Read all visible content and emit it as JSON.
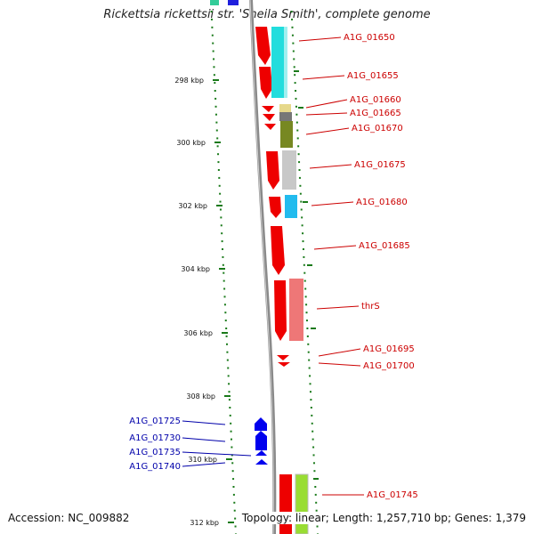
{
  "title": "Rickettsia rickettsii str. 'Sheila Smith', complete genome",
  "accession": "Accession: NC_009882",
  "summary": "Topology: linear; Length: 1,257,710 bp; Genes: 1,379",
  "colors": {
    "forward_gene": "#ee0000",
    "reverse_gene": "#0000ee",
    "forward_label": "#cc0000",
    "reverse_label": "#0000aa",
    "ruler_dash": "#1a7a1a",
    "backbone": "#888888"
  },
  "ruler_ticks": [
    "298 kbp",
    "300 kbp",
    "302 kbp",
    "304 kbp",
    "306 kbp",
    "308 kbp",
    "310 kbp",
    "312 kbp"
  ],
  "forward_labels": [
    "A1G_01650",
    "A1G_01655",
    "A1G_01660",
    "A1G_01665",
    "A1G_01670",
    "A1G_01675",
    "A1G_01680",
    "A1G_01685",
    "thrS",
    "A1G_01695",
    "A1G_01700",
    "A1G_01745"
  ],
  "reverse_labels": [
    "A1G_01725",
    "A1G_01730",
    "A1G_01735",
    "A1G_01740"
  ]
}
